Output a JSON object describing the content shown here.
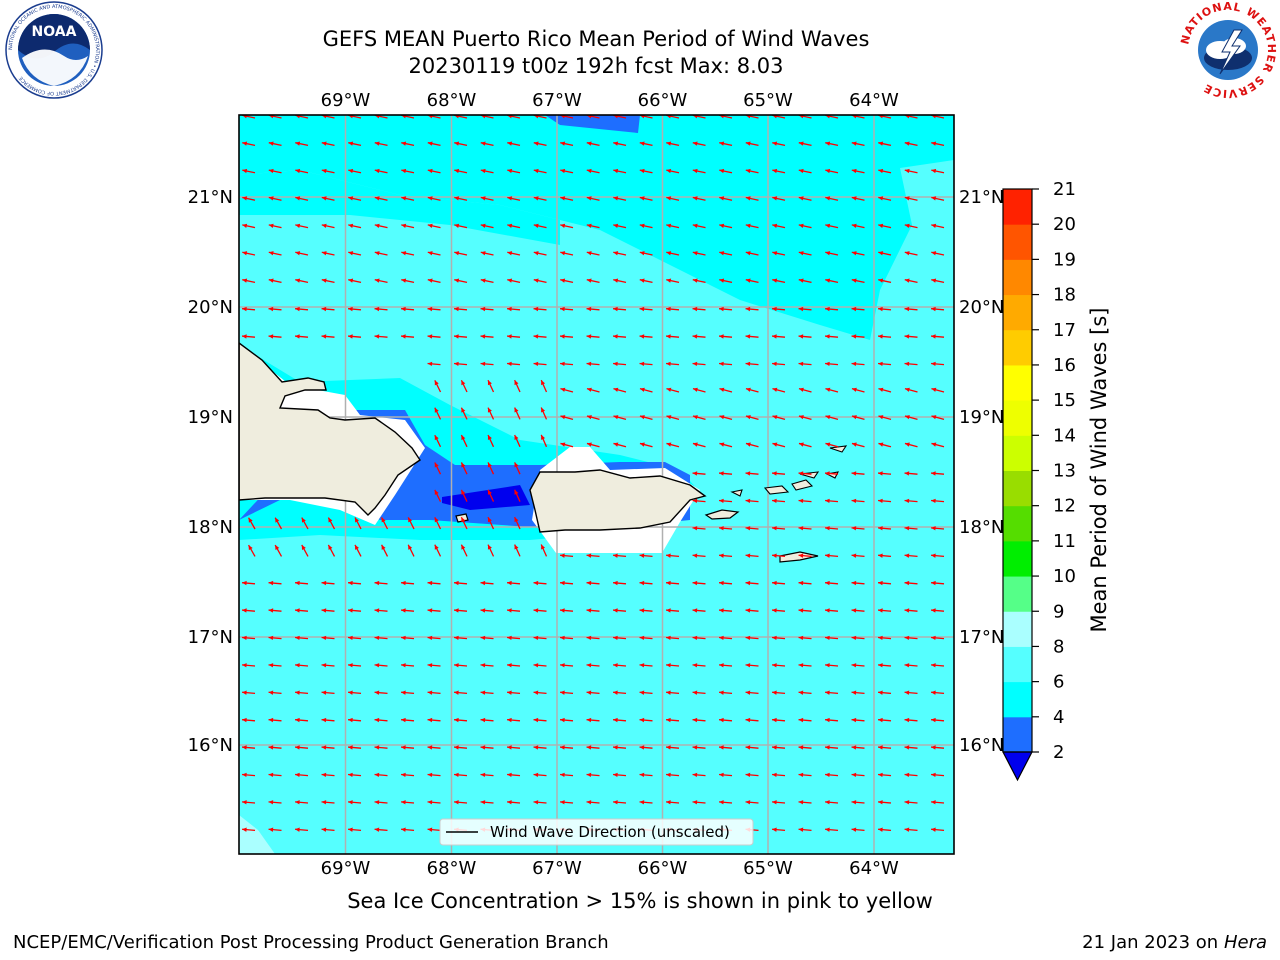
{
  "title_line1": "GEFS MEAN Puerto Rico Mean Period of Wind Waves",
  "title_line2": "20230119 t00z 192h fcst   Max: 8.03",
  "lon_ticks": [
    "69°W",
    "68°W",
    "67°W",
    "66°W",
    "65°W",
    "64°W"
  ],
  "lat_ticks": [
    "21°N",
    "20°N",
    "19°N",
    "18°N",
    "17°N",
    "16°N"
  ],
  "legend_label": "Wind Wave Direction (unscaled)",
  "colorbar": {
    "label": "Mean Period of Wind Waves [s]",
    "ticks": [
      "2",
      "4",
      "6",
      "8",
      "9",
      "10",
      "11",
      "12",
      "13",
      "14",
      "15",
      "16",
      "17",
      "18",
      "19",
      "20",
      "21"
    ],
    "colors": [
      "#1e6eff",
      "#00ffff",
      "#55ffff",
      "#aaffff",
      "#55ff88",
      "#00ee00",
      "#55dd00",
      "#99dd00",
      "#ccff00",
      "#eeff00",
      "#ffff00",
      "#ffcc00",
      "#ffaa00",
      "#ff8800",
      "#ff5500",
      "#ff2200"
    ],
    "under_color": "#0000ee"
  },
  "caption": "Sea Ice Concentration > 15% is shown in pink to yellow",
  "footer_left": "NCEP/EMC/Verification Post Processing Product Generation Branch",
  "footer_date": "21 Jan 2023 on ",
  "footer_machine": "Hera",
  "logos": {
    "noaa_text": "NOAA",
    "noaa_ring": "NATIONAL OCEANIC AND ATMOSPHERIC ADMINISTRATION • U.S. DEPARTMENT OF COMMERCE",
    "nws_ring": "NATIONAL WEATHER SERVICE"
  },
  "colors": {
    "land": "#efedde",
    "ocean_main": "#55ffff",
    "ocean_north": "#00ffff",
    "arrow": "#ff0000",
    "grid": "#b0b0b0"
  }
}
